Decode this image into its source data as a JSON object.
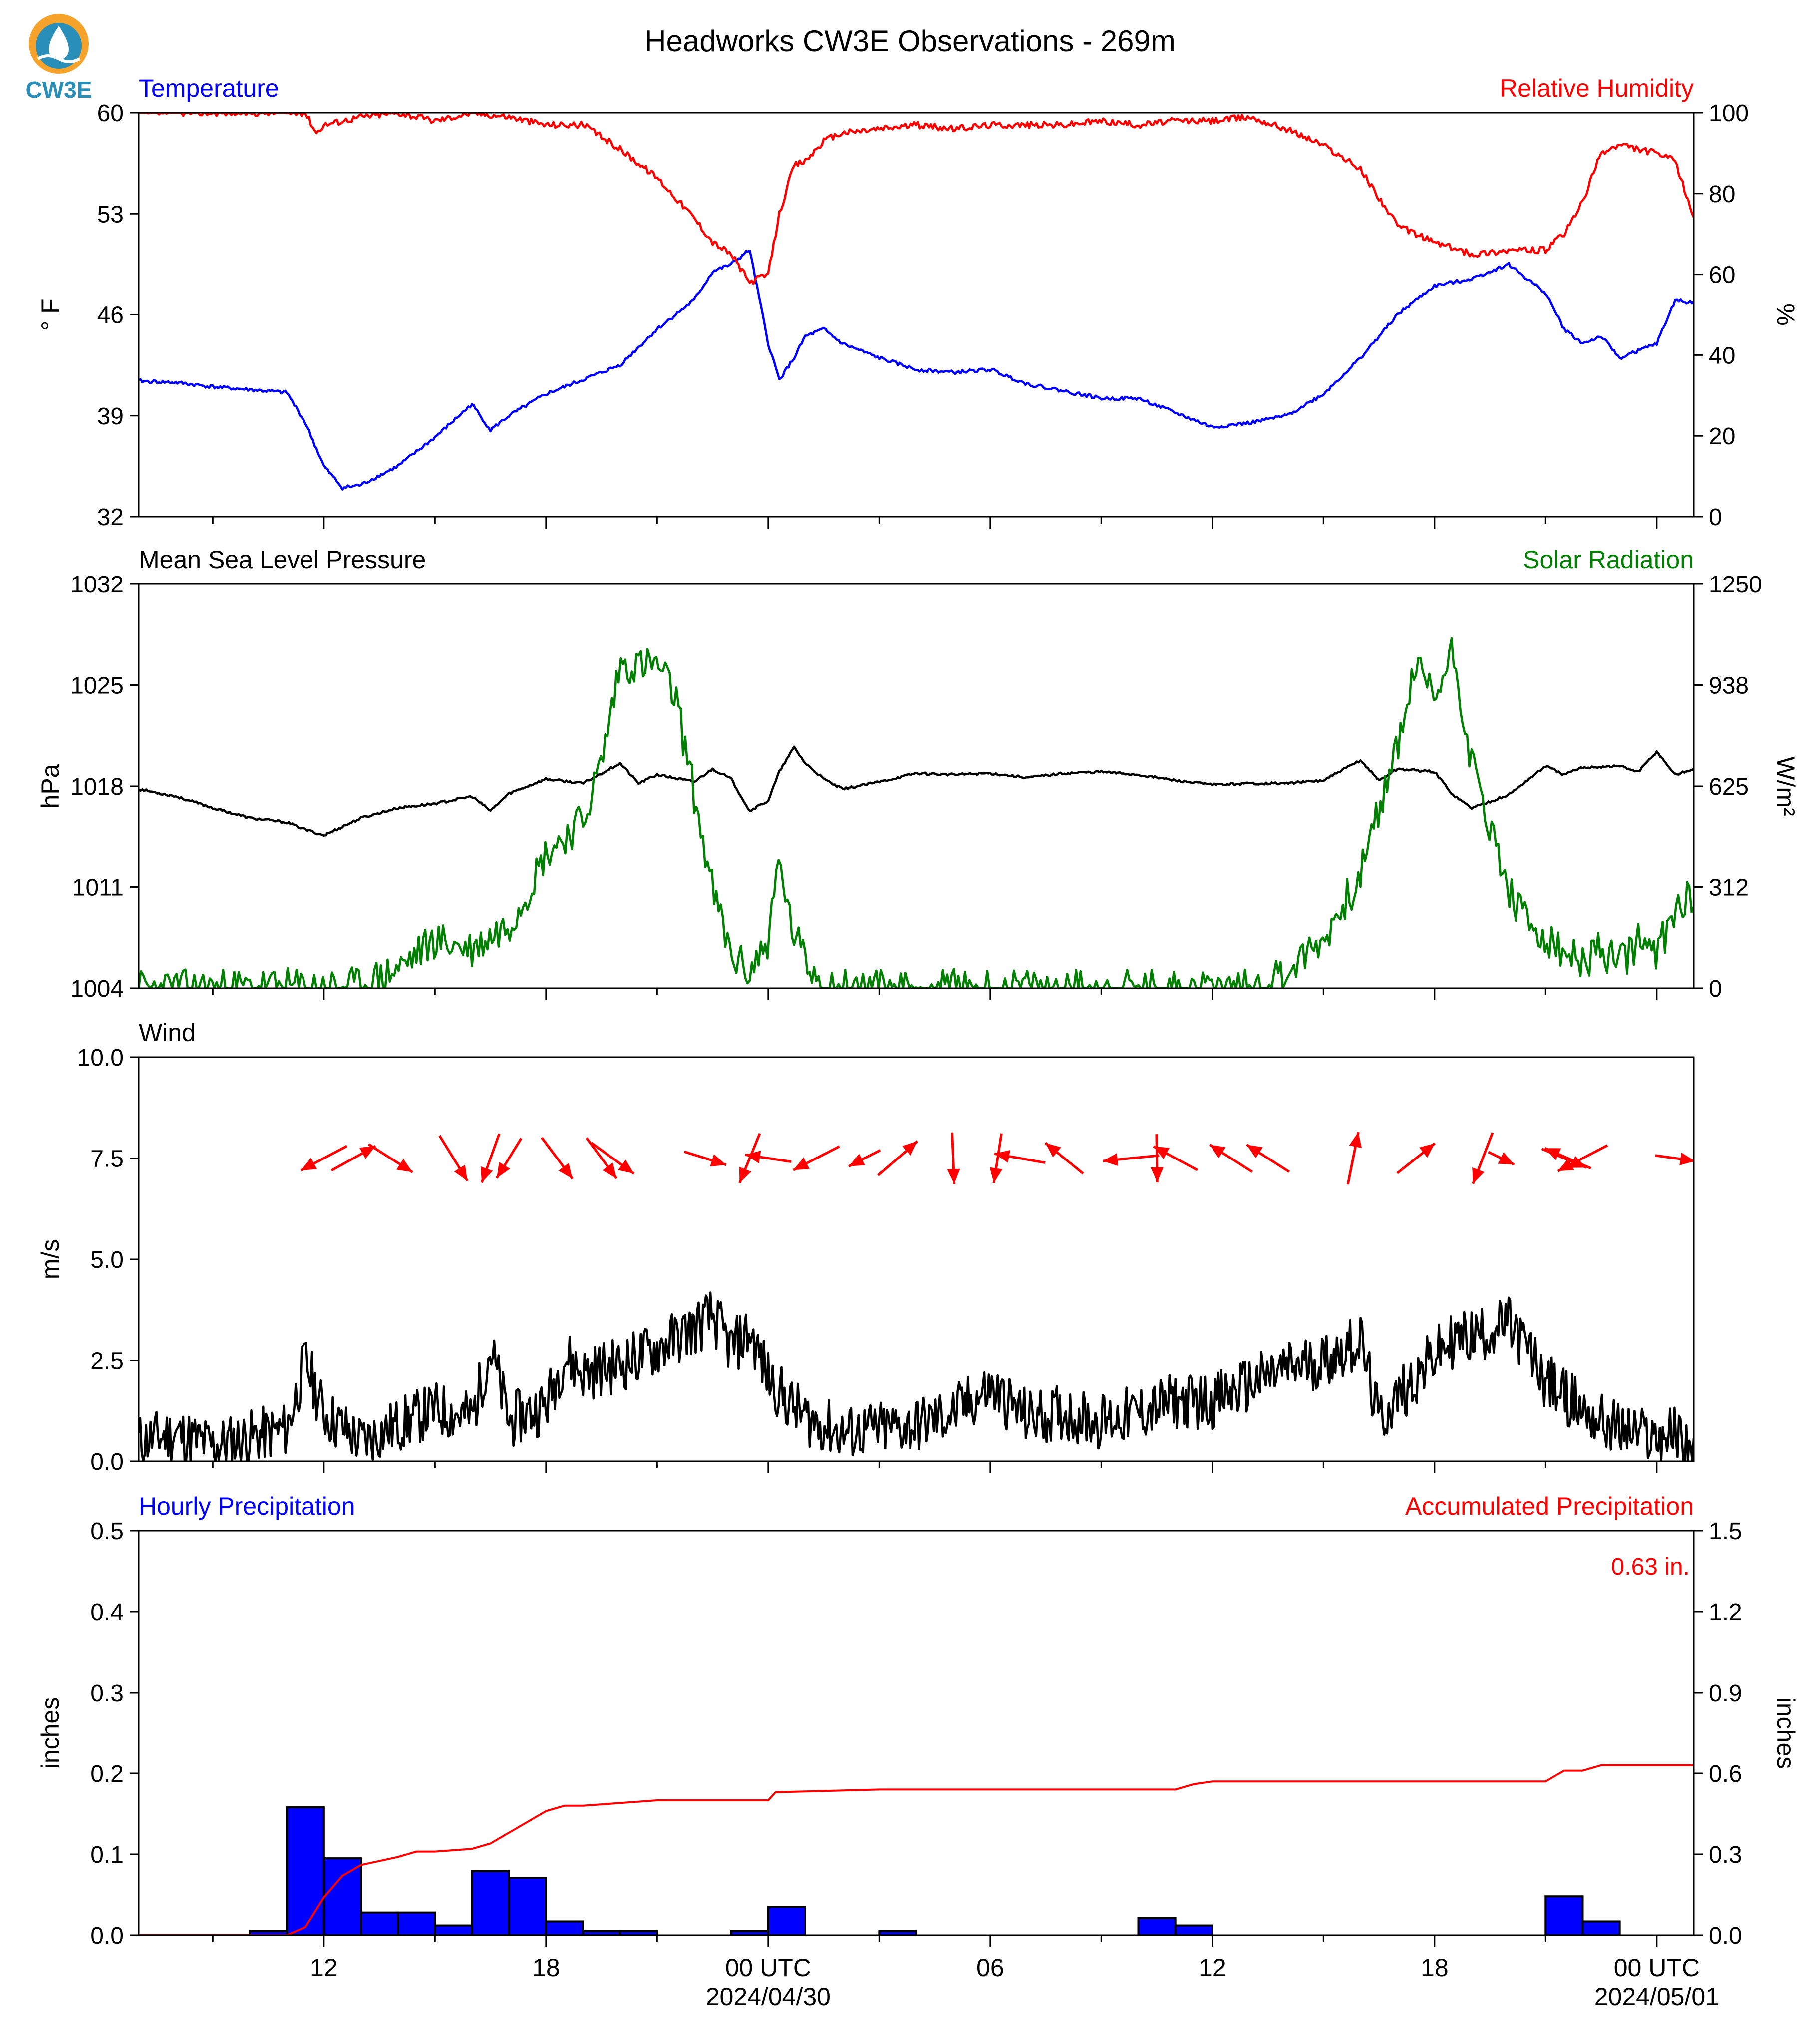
{
  "title": "Headworks CW3E Observations - 269m",
  "logo_text": "CW3E",
  "colors": {
    "blue": "#0000ff",
    "red": "#ff0000",
    "green": "#008000",
    "black": "#000000",
    "logo_orange": "#f5a32a",
    "logo_teal": "#2a8fb8"
  },
  "time_axis": {
    "range_hours": [
      0,
      42
    ],
    "tick_labels": [
      {
        "hour": 5,
        "label": "12"
      },
      {
        "hour": 11,
        "label": "18"
      },
      {
        "hour": 17,
        "label": "00 UTC",
        "sub": "2024/04/30"
      },
      {
        "hour": 23,
        "label": "06"
      },
      {
        "hour": 29,
        "label": "12"
      },
      {
        "hour": 35,
        "label": "18"
      },
      {
        "hour": 41,
        "label": "00 UTC",
        "sub": "2024/05/01"
      }
    ]
  },
  "chart_data": [
    {
      "type": "line",
      "left_title": "Temperature",
      "right_title": "Relative Humidity",
      "ylabel": "° F",
      "y2label": "%",
      "ylim": [
        32,
        60
      ],
      "yticks": [
        "32",
        "39",
        "46",
        "53",
        "60"
      ],
      "y2lim": [
        0,
        100
      ],
      "y2ticks": [
        "0",
        "20",
        "40",
        "60",
        "80",
        "100"
      ],
      "series": [
        {
          "name": "Temperature",
          "axis": "left",
          "color": "#0000ff",
          "x": [
            0,
            1,
            2,
            3,
            4,
            4.5,
            5,
            5.5,
            6,
            7,
            8,
            9,
            9.5,
            10,
            11,
            12,
            13,
            14,
            15,
            15.5,
            16,
            16.5,
            17,
            17.3,
            17.7,
            18,
            18.5,
            19,
            20,
            21,
            22,
            23,
            24,
            25,
            26,
            27,
            28,
            29,
            30,
            31,
            32,
            33,
            34,
            35,
            36,
            37,
            38,
            38.5,
            39,
            39.5,
            40,
            41,
            41.5,
            42
          ],
          "y": [
            41.4,
            41.3,
            41,
            40.8,
            40.6,
            38.5,
            35.5,
            34,
            34.2,
            35.5,
            37.5,
            39.8,
            38,
            39,
            40.5,
            41.5,
            42.5,
            45,
            47,
            49,
            49.5,
            50.5,
            44,
            41.5,
            43,
            44.5,
            45,
            44,
            43,
            42.2,
            42,
            42.2,
            41.2,
            40.7,
            40.2,
            40.2,
            39.2,
            38.2,
            38.5,
            39,
            40.5,
            43,
            46,
            48,
            48.5,
            49.5,
            47.5,
            45,
            44,
            44.5,
            43,
            44,
            47,
            46.8
          ]
        },
        {
          "name": "Relative Humidity",
          "axis": "right",
          "color": "#ff0000",
          "x": [
            0,
            1,
            2,
            3,
            4,
            4.5,
            4.8,
            5,
            6,
            7,
            8,
            9,
            10,
            11,
            12,
            13,
            14,
            15,
            15.5,
            16,
            16.5,
            17,
            17.3,
            17.7,
            18,
            18.5,
            19,
            20,
            21,
            22,
            23,
            24,
            25,
            26,
            27,
            28,
            29,
            30,
            31,
            32,
            33,
            34,
            35,
            36,
            37,
            38,
            38.5,
            39,
            39.5,
            40,
            41,
            41.5,
            42
          ],
          "y": [
            100,
            100,
            100,
            100,
            100,
            100,
            95,
            97,
            99,
            100,
            98,
            100,
            99,
            97,
            97,
            91,
            84,
            74,
            68,
            65,
            58,
            60,
            75,
            87,
            88,
            93,
            95,
            96,
            97,
            96,
            97,
            97,
            97,
            98,
            97,
            98,
            98,
            99,
            96,
            92,
            86,
            72,
            68,
            65,
            66,
            66,
            70,
            78,
            90,
            92,
            90,
            88,
            74
          ]
        }
      ]
    },
    {
      "type": "line",
      "left_title": "Mean Sea Level Pressure",
      "right_title": "Solar Radiation",
      "ylabel": "hPa",
      "y2label": "W/m²",
      "ylim": [
        1004,
        1032
      ],
      "yticks": [
        "1004",
        "1011",
        "1018",
        "1025",
        "1032"
      ],
      "y2lim": [
        0,
        1250
      ],
      "y2ticks": [
        "0",
        "312",
        "625",
        "938",
        "1250"
      ],
      "series": [
        {
          "name": "Mean Sea Level Pressure",
          "axis": "left",
          "color": "#000000",
          "x": [
            0,
            1,
            2,
            3,
            4,
            4.5,
            5,
            6,
            7,
            8,
            9,
            9.5,
            10,
            11,
            12,
            13,
            13.5,
            14,
            15,
            15.5,
            16,
            16.5,
            17,
            17.3,
            17.7,
            18,
            18.5,
            19,
            20,
            21,
            22,
            23,
            24,
            25,
            26,
            27,
            28,
            29,
            30,
            31,
            32,
            33,
            33.5,
            34,
            35,
            35.5,
            36,
            37,
            38,
            38.5,
            39,
            40,
            40.5,
            41,
            41.5,
            42
          ],
          "y": [
            1017.8,
            1017.3,
            1016.5,
            1015.8,
            1015.5,
            1015,
            1014.6,
            1015.8,
            1016.5,
            1016.8,
            1017.3,
            1016.3,
            1017.5,
            1018.5,
            1018.2,
            1019.6,
            1018.2,
            1018.8,
            1018.3,
            1019.2,
            1018.5,
            1016.3,
            1017,
            1019,
            1020.7,
            1019.6,
            1018.5,
            1017.8,
            1018.3,
            1018.9,
            1018.8,
            1018.9,
            1018.6,
            1018.9,
            1019,
            1018.8,
            1018.4,
            1018.1,
            1018.2,
            1018.2,
            1018.4,
            1019.8,
            1018.4,
            1019.2,
            1019,
            1017.4,
            1016.5,
            1017.4,
            1019.4,
            1018.8,
            1019.3,
            1019.4,
            1019,
            1020.4,
            1018.8,
            1019.2
          ]
        },
        {
          "name": "Solar Radiation",
          "axis": "right",
          "color": "#008000",
          "x": [
            0,
            6,
            7,
            8,
            9,
            10,
            10.5,
            11,
            12,
            12.5,
            13,
            13.5,
            14,
            14.5,
            15,
            15.5,
            16,
            16.5,
            17,
            17.3,
            17.6,
            18,
            18.5,
            19,
            20,
            30,
            31,
            32,
            33,
            33.5,
            34,
            34.5,
            35,
            35.5,
            36,
            36.5,
            37,
            37.5,
            38,
            38.5,
            39,
            39.5,
            40,
            40.5,
            41,
            41.5,
            42
          ],
          "y": [
            0,
            5,
            60,
            150,
            120,
            200,
            300,
            420,
            520,
            700,
            1000,
            1000,
            1000,
            900,
            600,
            300,
            100,
            50,
            150,
            400,
            200,
            80,
            20,
            5,
            0,
            0,
            50,
            150,
            350,
            550,
            750,
            1000,
            900,
            1050,
            700,
            500,
            300,
            200,
            150,
            100,
            80,
            120,
            70,
            150,
            100,
            250,
            300
          ]
        }
      ]
    },
    {
      "type": "line",
      "left_title": "Wind",
      "ylabel": "m/s",
      "ylim": [
        0,
        10
      ],
      "yticks": [
        "0.0",
        "2.5",
        "5.0",
        "7.5",
        "10.0"
      ],
      "series": [
        {
          "name": "Wind speed",
          "axis": "left",
          "color": "#000000",
          "x": [
            0,
            1,
            2,
            3,
            4,
            4.5,
            5,
            6,
            7,
            8,
            9,
            9.5,
            10,
            11,
            11.5,
            12,
            13,
            14,
            15,
            15.5,
            16,
            16.5,
            17,
            17.5,
            18,
            19,
            20,
            21,
            22,
            23,
            24,
            25,
            26,
            27,
            28,
            29,
            30,
            31,
            32,
            33,
            33.5,
            34,
            35,
            35.5,
            36,
            37,
            37.5,
            38,
            39,
            39.5,
            40,
            41,
            41.5,
            42
          ],
          "y": [
            0.5,
            0.7,
            0.4,
            0.6,
            0.8,
            2.5,
            1.2,
            0.5,
            0.9,
            1.3,
            1.1,
            2.8,
            1,
            1.4,
            2.6,
            2.2,
            2.4,
            2.8,
            3.3,
            3.6,
            2.8,
            3.2,
            2.1,
            1.5,
            1.1,
            0.7,
            0.8,
            0.9,
            1.2,
            1.8,
            1.1,
            1.2,
            1,
            1.2,
            1.5,
            1.5,
            1.9,
            2.3,
            2.5,
            3,
            1,
            1.6,
            2.6,
            3,
            3.1,
            3.4,
            2.8,
            2,
            1.3,
            1,
            0.8,
            0.6,
            0.7,
            0.3
          ]
        },
        {
          "name": "Wind direction",
          "type": "vectors",
          "color": "#ff0000",
          "arrows": [
            [
              5,
              -6.6,
              -3.5
            ],
            [
              5.8,
              6.3,
              3.5
            ],
            [
              6.8,
              6.3,
              -4
            ],
            [
              8.5,
              4,
              -6.5
            ],
            [
              9.5,
              -2.5,
              -7
            ],
            [
              10,
              -3.5,
              -5.7
            ],
            [
              11.3,
              4.4,
              -5.9
            ],
            [
              12.5,
              4.3,
              -5.8
            ],
            [
              12.8,
              6.1,
              -4.4
            ],
            [
              15.3,
              6,
              -1.9
            ],
            [
              16.5,
              -2.9,
              -7.1
            ],
            [
              17,
              -6.6,
              1
            ],
            [
              18.3,
              -6.6,
              -3.4
            ],
            [
              19.6,
              -4.5,
              -2.3
            ],
            [
              20.5,
              5.7,
              4.9
            ],
            [
              22,
              0.3,
              -7.4
            ],
            [
              23.2,
              -1.1,
              -7.1
            ],
            [
              23.8,
              -7.3,
              1.3
            ],
            [
              25,
              -5.4,
              4.4
            ],
            [
              26.8,
              -8.1,
              -0.8
            ],
            [
              27.5,
              0.1,
              -6.9
            ],
            [
              28,
              -6.3,
              3.4
            ],
            [
              29.5,
              -6.1,
              3.9
            ],
            [
              30.5,
              -6.1,
              3.9
            ],
            [
              32.8,
              1.5,
              7.5
            ],
            [
              34.5,
              5.4,
              4.3
            ],
            [
              36.3,
              -2.8,
              -7.3
            ],
            [
              36.8,
              3.7,
              -1.8
            ],
            [
              38.6,
              -6.6,
              2.9
            ],
            [
              38.5,
              6.4,
              -2.7
            ],
            [
              39,
              -7.1,
              -3.7
            ],
            [
              41.5,
              5.7,
              -0.8
            ]
          ]
        }
      ]
    },
    {
      "type": "bar",
      "left_title": "Hourly Precipitation",
      "right_title": "Accumulated Precipitation",
      "annotation": "0.63 in.",
      "ylabel": "inches",
      "y2label": "inches",
      "ylim": [
        0,
        0.5
      ],
      "yticks": [
        "0.0",
        "0.1",
        "0.2",
        "0.3",
        "0.4",
        "0.5"
      ],
      "y2lim": [
        0,
        1.5
      ],
      "y2ticks": [
        "0.0",
        "0.3",
        "0.6",
        "0.9",
        "1.2",
        "1.5"
      ],
      "series": [
        {
          "name": "Hourly Precipitation",
          "type": "bar",
          "axis": "left",
          "color": "#0000ff",
          "x": [
            3,
            4,
            5,
            6,
            7,
            8,
            9,
            10,
            11,
            12,
            13,
            16,
            17,
            20,
            27,
            28,
            38,
            39
          ],
          "values": [
            0.005,
            0.158,
            0.095,
            0.028,
            0.028,
            0.012,
            0.079,
            0.071,
            0.017,
            0.005,
            0.005,
            0.005,
            0.035,
            0.005,
            0.021,
            0.012,
            0.048,
            0.017
          ]
        },
        {
          "name": "Accumulated Precipitation",
          "type": "line",
          "axis": "right",
          "color": "#ff0000",
          "x": [
            0,
            4,
            4.5,
            5,
            5.5,
            6,
            7,
            7.5,
            8,
            9,
            9.5,
            10,
            11,
            11.5,
            12,
            13,
            14,
            17,
            17.2,
            20,
            28,
            28.5,
            29,
            38,
            38.5,
            39,
            39.5,
            40,
            42
          ],
          "y": [
            0,
            0,
            0.03,
            0.14,
            0.22,
            0.26,
            0.29,
            0.31,
            0.31,
            0.32,
            0.34,
            0.38,
            0.46,
            0.48,
            0.48,
            0.49,
            0.5,
            0.5,
            0.53,
            0.54,
            0.54,
            0.56,
            0.57,
            0.57,
            0.61,
            0.61,
            0.63,
            0.63,
            0.63
          ]
        }
      ]
    }
  ]
}
